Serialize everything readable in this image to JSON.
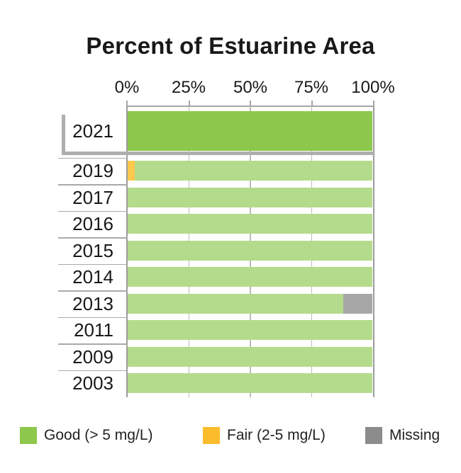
{
  "title": "Percent of Estuarine Area",
  "x_axis": {
    "tick_labels": [
      "0%",
      "25%",
      "50%",
      "75%",
      "100%"
    ],
    "tick_values": [
      0,
      25,
      50,
      75,
      100
    ]
  },
  "chart_data": {
    "type": "bar",
    "orientation": "horizontal",
    "stacked": true,
    "title": "Percent of Estuarine Area",
    "xlabel": "Percent of Estuarine Area",
    "xlim": [
      0,
      100
    ],
    "x_unit": "percent",
    "grid": "vertical",
    "legend_position": "bottom",
    "categories": [
      "2021",
      "2019",
      "2017",
      "2016",
      "2015",
      "2014",
      "2013",
      "2011",
      "2009",
      "2003"
    ],
    "highlighted_category": "2021",
    "stack_order": [
      1,
      0,
      2
    ],
    "series": [
      {
        "name": "Good (> 5 mg/L)",
        "values": [
          100,
          97,
          100,
          100,
          100,
          100,
          88,
          100,
          100,
          100
        ]
      },
      {
        "name": "Fair (2-5 mg/L)",
        "values": [
          0,
          3,
          0,
          0,
          0,
          0,
          0,
          0,
          0,
          0
        ]
      },
      {
        "name": "Missing",
        "values": [
          0,
          0,
          0,
          0,
          0,
          0,
          12,
          0,
          0,
          0
        ]
      }
    ]
  },
  "colors": {
    "good_bar_highlight": "#8DC74B",
    "good_bar": "#B4DB8C",
    "fair_bar": "#FFC94E",
    "missing_bar": "#A7A7A7",
    "fair_legend": "#FBBC2C",
    "missing_legend": "#8C8C8C",
    "axis_gray": "#A6A6A6",
    "bracket_gray": "#AEAEAE"
  },
  "legend": {
    "items": [
      {
        "label": "Good (> 5 mg/L)",
        "swatch": "good_bar_highlight"
      },
      {
        "label": "Fair (2-5 mg/L)",
        "swatch": "fair_legend"
      },
      {
        "label": "Missing",
        "swatch": "missing_legend"
      }
    ]
  }
}
